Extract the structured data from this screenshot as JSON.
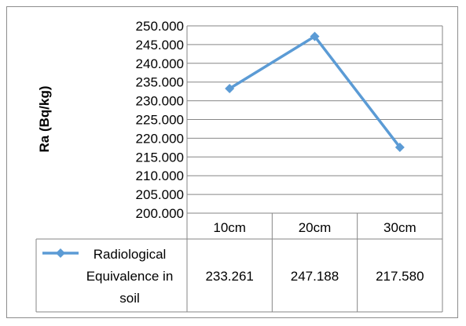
{
  "chart_data": {
    "type": "line",
    "categories": [
      "10cm",
      "20cm",
      "30cm"
    ],
    "series": [
      {
        "name": "Radiological Equivalence in soil",
        "values": [
          233.261,
          247.188,
          217.58
        ],
        "value_labels": [
          "233.261",
          "247.188",
          "217.580"
        ],
        "color": "#5b9bd5",
        "marker": "diamond"
      }
    ],
    "ylabel": "Ra (Bq/kg)",
    "xlabel": "",
    "ylim": [
      200,
      250
    ],
    "ytick_step": 5,
    "ytick_labels": [
      "200.000",
      "205.000",
      "210.000",
      "215.000",
      "220.000",
      "225.000",
      "230.000",
      "235.000",
      "240.000",
      "245.000",
      "250.000"
    ],
    "grid": true,
    "data_table": true,
    "legend_lines": [
      "Radiological",
      "Equivalence in",
      "soil"
    ]
  }
}
